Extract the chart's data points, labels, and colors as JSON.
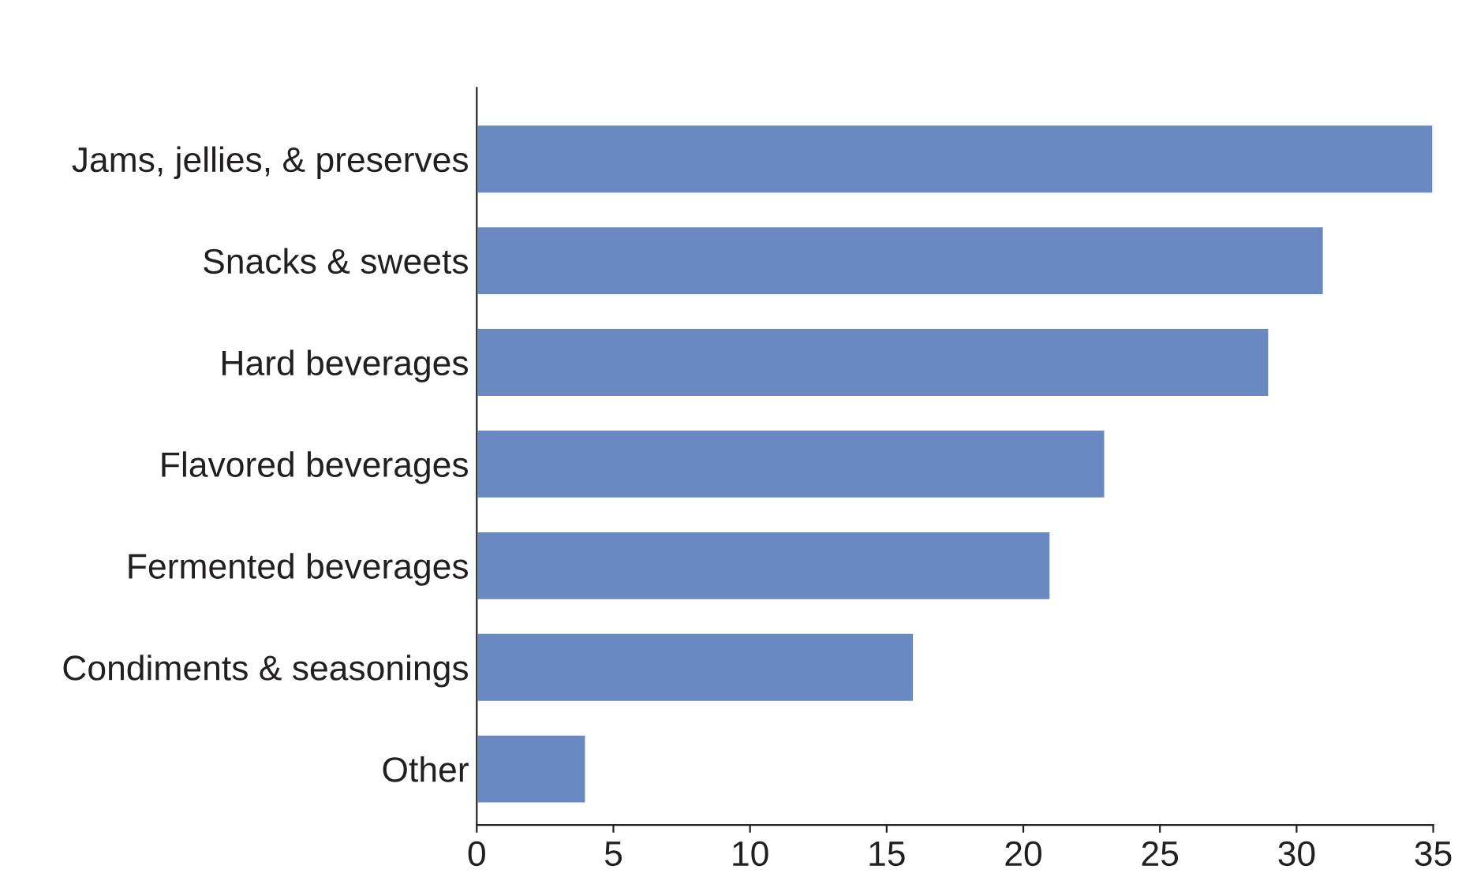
{
  "chart_data": {
    "type": "bar",
    "orientation": "horizontal",
    "categories": [
      "Jams, jellies, & preserves",
      "Snacks & sweets",
      "Hard beverages",
      "Flavored beverages",
      "Fermented beverages",
      "Condiments & seasonings",
      "Other"
    ],
    "values": [
      35,
      31,
      29,
      23,
      21,
      16,
      4
    ],
    "color": "#6a88c2",
    "xlim": [
      0,
      35
    ],
    "xticks": [
      0,
      5,
      10,
      15,
      20,
      25,
      30,
      35
    ],
    "grid": false,
    "legend": false
  }
}
